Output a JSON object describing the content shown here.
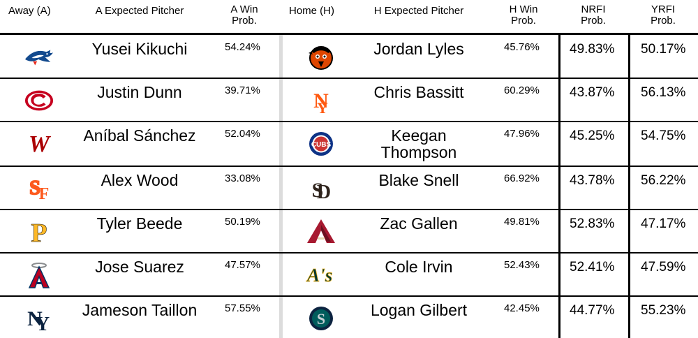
{
  "header": {
    "away": "Away (A)",
    "away_pitcher": "A Expected Pitcher",
    "away_win_1": "A Win",
    "away_win_2": "Prob.",
    "home": "Home (H)",
    "home_pitcher": "H Expected Pitcher",
    "home_win_1": "H Win",
    "home_win_2": "Prob.",
    "nrfi_1": "NRFI",
    "nrfi_2": "Prob.",
    "yrfi_1": "YRFI",
    "yrfi_2": "Prob."
  },
  "rows": [
    {
      "away_logo": "blue-jays-logo",
      "away_pitcher": "Yusei Kikuchi",
      "away_win": "54.24%",
      "home_logo": "orioles-logo",
      "home_pitcher_1": "Jordan Lyles",
      "home_pitcher_2": "",
      "home_win": "45.76%",
      "nrfi": "49.83%",
      "yrfi": "50.17%"
    },
    {
      "away_logo": "reds-logo",
      "away_pitcher": "Justin Dunn",
      "away_win": "39.71%",
      "home_logo": "mets-logo",
      "home_pitcher_1": "Chris Bassitt",
      "home_pitcher_2": "",
      "home_win": "60.29%",
      "nrfi": "43.87%",
      "yrfi": "56.13%"
    },
    {
      "away_logo": "nationals-logo",
      "away_pitcher": "Aníbal Sánchez",
      "away_win": "52.04%",
      "home_logo": "cubs-logo",
      "home_pitcher_1": "Keegan",
      "home_pitcher_2": "Thompson",
      "home_win": "47.96%",
      "nrfi": "45.25%",
      "yrfi": "54.75%"
    },
    {
      "away_logo": "giants-logo",
      "away_pitcher": "Alex Wood",
      "away_win": "33.08%",
      "home_logo": "padres-logo",
      "home_pitcher_1": "Blake Snell",
      "home_pitcher_2": "",
      "home_win": "66.92%",
      "nrfi": "43.78%",
      "yrfi": "56.22%"
    },
    {
      "away_logo": "pirates-logo",
      "away_pitcher": "Tyler Beede",
      "away_win": "50.19%",
      "home_logo": "diamondbacks-logo",
      "home_pitcher_1": "Zac Gallen",
      "home_pitcher_2": "",
      "home_win": "49.81%",
      "nrfi": "52.83%",
      "yrfi": "47.17%"
    },
    {
      "away_logo": "angels-logo",
      "away_pitcher": "Jose Suarez",
      "away_win": "47.57%",
      "home_logo": "athletics-logo",
      "home_pitcher_1": "Cole Irvin",
      "home_pitcher_2": "",
      "home_win": "52.43%",
      "nrfi": "52.41%",
      "yrfi": "47.59%"
    },
    {
      "away_logo": "yankees-logo",
      "away_pitcher": "Jameson Taillon",
      "away_win": "57.55%",
      "home_logo": "mariners-logo",
      "home_pitcher_1": "Logan Gilbert",
      "home_pitcher_2": "",
      "home_win": "42.45%",
      "nrfi": "44.77%",
      "yrfi": "55.23%"
    }
  ],
  "logos": {
    "bluejays_text": "",
    "athletics_text": "A's",
    "cubs_text": "CUBS",
    "colors": {
      "bluejays": "#134A8E",
      "orioles": "#DF4601",
      "reds": "#C6011F",
      "mets": "#FF5910",
      "nationals": "#AB0003",
      "cubs": "#0E3386",
      "giants": "#FD5A1E",
      "padres": "#2F241D",
      "pirates": "#FDB827",
      "diamondbacks": "#A71930",
      "angels": "#BA0021",
      "athletics": "#003831",
      "yankees": "#0C2340",
      "mariners": "#005C5C"
    }
  }
}
